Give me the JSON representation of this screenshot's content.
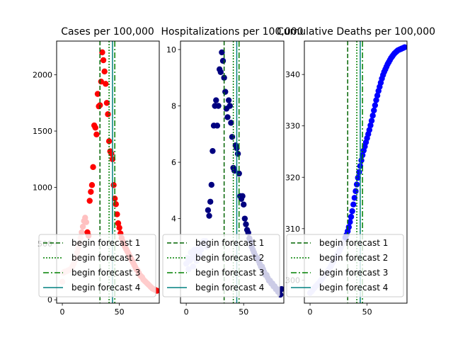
{
  "colors": {
    "forecast1": "#006400",
    "forecast2": "#008000",
    "forecast3": "#008000",
    "forecast4": "#008080"
  },
  "legend": {
    "placement": "lower-left",
    "entries": [
      {
        "label": "begin forecast 1",
        "style": "dashed",
        "color": "#006400"
      },
      {
        "label": "begin forecast 2",
        "style": "dotted",
        "color": "#008000"
      },
      {
        "label": "begin forecast 3",
        "style": "dashdot",
        "color": "#008000"
      },
      {
        "label": "begin forecast 4",
        "style": "solid",
        "color": "#008080"
      }
    ]
  },
  "chart_data": [
    {
      "type": "scatter",
      "title": "Cases per 100,000",
      "xlabel": "",
      "ylabel": "",
      "xlim": [
        -5,
        85
      ],
      "ylim": [
        -30,
        2300
      ],
      "xticks": [
        0,
        50
      ],
      "yticks": [
        0,
        500,
        1000,
        1500,
        2000
      ],
      "forecast_lines": [
        33,
        41,
        46,
        44
      ],
      "series": [
        {
          "fit_color": "#ffc0c0",
          "obs_color": "#ff0000",
          "x": [
            0,
            1,
            2,
            3,
            4,
            5,
            6,
            7,
            8,
            9,
            10,
            11,
            12,
            13,
            14,
            15,
            16,
            17,
            18,
            19,
            20,
            21,
            22,
            23,
            24,
            25,
            26,
            27,
            28,
            29,
            30,
            31,
            32,
            33,
            34,
            35,
            36,
            37,
            38,
            39,
            40,
            41,
            42,
            43,
            44,
            45,
            46,
            47,
            48,
            49,
            50,
            51,
            52,
            53,
            54,
            55,
            56,
            57,
            58,
            59,
            60,
            61,
            62,
            63,
            64,
            65,
            66,
            67,
            68,
            69,
            70,
            71,
            72,
            73,
            74,
            75,
            76,
            77,
            78,
            79,
            80,
            81,
            82,
            83
          ],
          "y": [
            160,
            240,
            250,
            250,
            255,
            260,
            265,
            270,
            280,
            300,
            320,
            350,
            380,
            420,
            460,
            500,
            550,
            600,
            650,
            700,
            730,
            690,
            600,
            570,
            880,
            960,
            1020,
            1180,
            1550,
            1530,
            1470,
            1830,
            1720,
            1730,
            1940,
            2200,
            2130,
            2030,
            1920,
            1750,
            1650,
            1410,
            1320,
            1300,
            1250,
            1020,
            900,
            850,
            760,
            680,
            640,
            590,
            550,
            520,
            490,
            470,
            450,
            430,
            410,
            390,
            370,
            350,
            330,
            310,
            290,
            270,
            260,
            240,
            220,
            210,
            200,
            180,
            170,
            160,
            150,
            140,
            130,
            120,
            110,
            100,
            95,
            90,
            85,
            80
          ],
          "fit_until": 21
        }
      ]
    },
    {
      "type": "scatter",
      "title": "Hospitalizations per 100,000",
      "xlabel": "",
      "ylabel": "",
      "xlim": [
        -5,
        85
      ],
      "ylim": [
        1.0,
        10.3
      ],
      "xticks": [
        0,
        50
      ],
      "yticks": [
        4,
        6,
        8,
        10
      ],
      "forecast_lines": [
        33,
        41,
        46,
        44
      ],
      "series": [
        {
          "fit_color": "#c0c0ff",
          "obs_color": "#000080",
          "x": [
            0,
            1,
            2,
            3,
            4,
            5,
            6,
            7,
            8,
            9,
            10,
            11,
            12,
            13,
            14,
            15,
            16,
            17,
            18,
            19,
            20,
            21,
            22,
            23,
            24,
            25,
            26,
            27,
            28,
            29,
            30,
            31,
            32,
            33,
            34,
            35,
            36,
            37,
            38,
            39,
            40,
            41,
            42,
            43,
            44,
            45,
            46,
            47,
            48,
            49,
            50,
            51,
            52,
            53,
            54,
            55,
            56,
            57,
            58,
            59,
            60,
            61,
            62,
            63,
            64,
            65,
            66,
            67,
            68,
            69,
            70,
            71,
            72,
            73,
            74,
            75,
            76,
            77,
            78,
            79,
            80,
            81,
            82,
            83
          ],
          "y": [
            2.4,
            2.6,
            2.2,
            2.5,
            2.8,
            2.6,
            2.3,
            2.9,
            2.7,
            2.5,
            2.8,
            3.0,
            2.7,
            2.9,
            3.1,
            3.2,
            3.2,
            3.2,
            3.0,
            4.3,
            4.1,
            4.6,
            5.2,
            6.4,
            7.3,
            8.0,
            8.2,
            7.3,
            8.0,
            9.3,
            9.2,
            9.9,
            9.6,
            9.0,
            8.5,
            7.9,
            7.6,
            8.2,
            8.0,
            7.4,
            6.9,
            5.8,
            5.7,
            6.6,
            6.5,
            6.3,
            5.6,
            4.8,
            4.7,
            4.8,
            4.5,
            4.0,
            3.8,
            3.6,
            3.5,
            3.3,
            3.2,
            3.0,
            2.9,
            2.8,
            2.7,
            2.6,
            2.6,
            2.5,
            2.4,
            2.3,
            2.3,
            2.2,
            2.1,
            2.0,
            2.0,
            1.9,
            1.8,
            1.8,
            1.7,
            1.7,
            1.6,
            1.6,
            1.5,
            1.5,
            1.4,
            1.4,
            1.3,
            1.5
          ],
          "fit_until": 18
        }
      ]
    },
    {
      "type": "scatter",
      "title": "Cumulative Deaths per 100,000",
      "xlabel": "",
      "ylabel": "",
      "xlim": [
        -5,
        85
      ],
      "ylim": [
        295.5,
        346.5
      ],
      "xticks": [
        0,
        50
      ],
      "yticks": [
        300,
        310,
        320,
        330,
        340
      ],
      "forecast_lines": [
        33,
        41,
        46,
        44
      ],
      "series": [
        {
          "fit_color": "#c0c0ff",
          "obs_color": "#0000ff",
          "x": [
            0,
            1,
            2,
            3,
            4,
            5,
            6,
            7,
            8,
            9,
            10,
            11,
            12,
            13,
            14,
            15,
            16,
            17,
            18,
            19,
            20,
            21,
            22,
            23,
            24,
            25,
            26,
            27,
            28,
            29,
            30,
            31,
            32,
            33,
            34,
            35,
            36,
            37,
            38,
            39,
            40,
            41,
            42,
            43,
            44,
            45,
            46,
            47,
            48,
            49,
            50,
            51,
            52,
            53,
            54,
            55,
            56,
            57,
            58,
            59,
            60,
            61,
            62,
            63,
            64,
            65,
            66,
            67,
            68,
            69,
            70,
            71,
            72,
            73,
            74,
            75,
            76,
            77,
            78,
            79,
            80,
            81,
            82,
            83
          ],
          "y": [
            297.5,
            297.7,
            298.0,
            298.3,
            298.5,
            298.8,
            299.0,
            299.3,
            299.5,
            299.8,
            300.1,
            300.4,
            300.7,
            301.0,
            301.3,
            301.6,
            301.9,
            302.2,
            302.6,
            303.0,
            303.4,
            303.8,
            304.2,
            304.6,
            305.0,
            305.4,
            305.8,
            306.3,
            306.8,
            307.3,
            307.8,
            308.3,
            308.8,
            309.5,
            310.3,
            311.3,
            312.3,
            313.4,
            314.7,
            316.0,
            317.3,
            318.6,
            319.9,
            321.0,
            322.2,
            323.3,
            324.3,
            325.2,
            326.0,
            326.8,
            327.6,
            328.4,
            329.2,
            330.1,
            331.0,
            332.0,
            333.0,
            334.0,
            335.0,
            335.9,
            336.8,
            337.6,
            338.4,
            339.2,
            339.9,
            340.5,
            341.0,
            341.5,
            342.0,
            342.4,
            342.8,
            343.2,
            343.5,
            343.8,
            344.1,
            344.3,
            344.5,
            344.7,
            344.8,
            344.9,
            345.0,
            345.1,
            345.2,
            345.3
          ],
          "fit_until": 30
        }
      ]
    }
  ]
}
